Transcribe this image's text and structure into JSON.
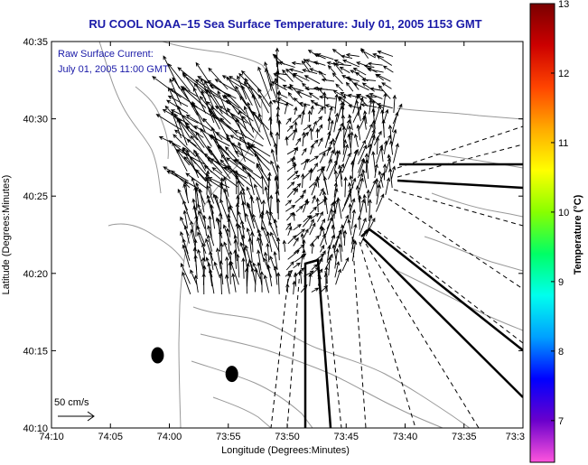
{
  "chart_data": {
    "type": "vector-field map",
    "title": "RU COOL  NOAA–15  Sea Surface Temperature:  July 01, 2005 1153 GMT",
    "xlabel": "Longitude (Degrees:Minutes)",
    "ylabel": "Latitude (Degrees:Minutes)",
    "annotation_line1": "Raw Surface Current:",
    "annotation_line2": "July 01, 2005 11:00 GMT",
    "scale_label": "50 cm/s",
    "x_ticks": [
      "74:10",
      "74:05",
      "74:00",
      "73:55",
      "73:50",
      "73:45",
      "73:40",
      "73:35",
      "73:3"
    ],
    "x_tick_minutes": [
      10,
      5,
      0,
      -5,
      -10,
      -15,
      -20,
      -25,
      -30
    ],
    "y_ticks": [
      "40:10",
      "40:15",
      "40:20",
      "40:25",
      "40:30",
      "40:35"
    ],
    "y_tick_minutes": [
      10,
      15,
      20,
      25,
      30,
      35
    ],
    "xlim_minutes_west_of_74": [
      10,
      -30
    ],
    "ylim_minutes_north_of_40": [
      10,
      35
    ],
    "colorbar": {
      "label": "Temperature (°C)",
      "range": [
        6.4,
        13
      ],
      "ticks": [
        "7",
        "8",
        "9",
        "10",
        "11",
        "12",
        "13"
      ],
      "tick_values": [
        7,
        8,
        9,
        10,
        11,
        12,
        13
      ],
      "colors": [
        "#ff55dd",
        "#6a00cc",
        "#0000ff",
        "#00a0ff",
        "#00ffee",
        "#00ff66",
        "#88ff00",
        "#ffff00",
        "#ffaa00",
        "#ff4400",
        "#cc0000",
        "#7a0000"
      ]
    },
    "markers": [
      {
        "lon_min": 1.0,
        "lat_min": 14.7,
        "label": "buoy"
      },
      {
        "lon_min": -5.3,
        "lat_min": 13.5,
        "label": "buoy"
      }
    ],
    "current_vectors_domain": "radar coverage area off New Jersey / Long Island, 40:18–40:34 N, 73:40–74:02 W",
    "colors": {
      "title": "#1a1aa8",
      "annotation": "#1a1aa8",
      "land_contour": "#999999",
      "vector": "#000000"
    }
  }
}
